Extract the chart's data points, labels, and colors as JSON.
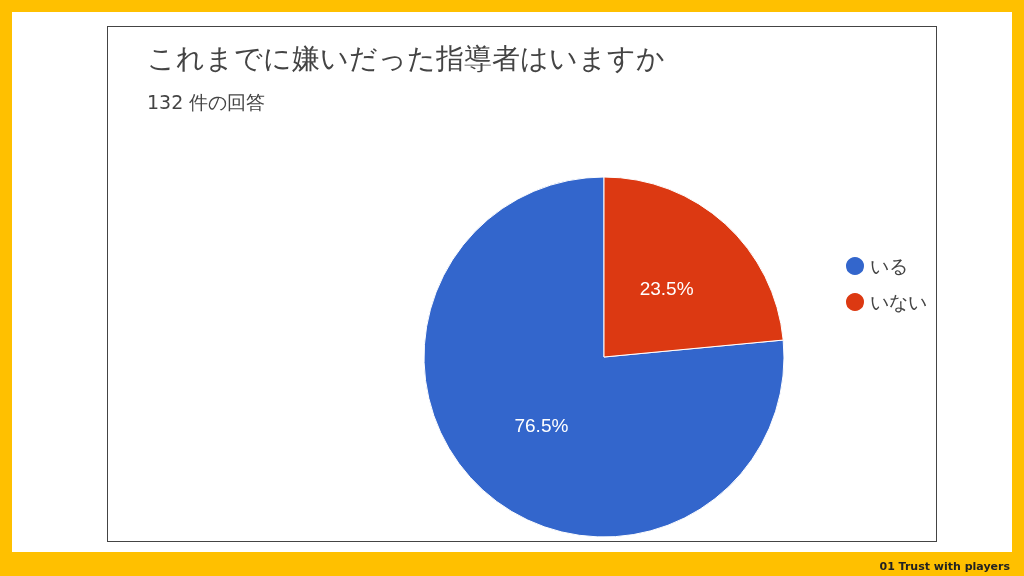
{
  "chart_data": {
    "type": "pie",
    "title": "これまでに嫌いだった指導者はいますか",
    "subtitle": "132 件の回答",
    "categories": [
      "いる",
      "いない"
    ],
    "values": [
      76.5,
      23.5
    ],
    "colors": [
      "#3366cc",
      "#dc3912"
    ],
    "value_labels": [
      "76.5%",
      "23.5%"
    ],
    "legend": "right",
    "annotations": [
      "01 Trust with players"
    ]
  }
}
